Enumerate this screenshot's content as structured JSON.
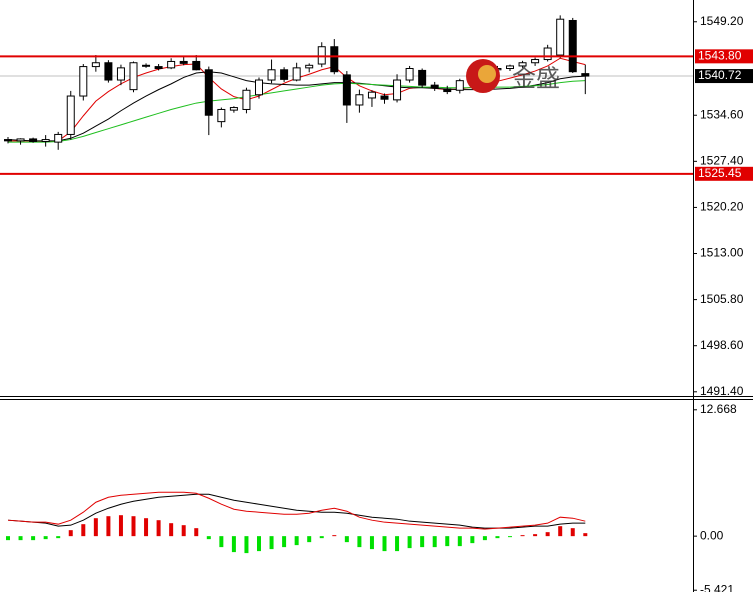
{
  "chart_data": [
    {
      "type": "candlestick",
      "ylim": [
        1490.9,
        1552.6
      ],
      "yticks": [
        {
          "value": 1549.2,
          "label": "1549.20"
        },
        {
          "value": 1534.6,
          "label": "1534.60"
        },
        {
          "value": 1527.4,
          "label": "1527.40"
        },
        {
          "value": 1520.2,
          "label": "1520.20"
        },
        {
          "value": 1513.0,
          "label": "1513.00"
        },
        {
          "value": 1505.8,
          "label": "1505.80"
        },
        {
          "value": 1498.6,
          "label": "1498.60"
        },
        {
          "value": 1491.4,
          "label": "1491.40"
        }
      ],
      "open": [
        1530.8,
        1530.6,
        1530.9,
        1530.5,
        1530.4,
        1531.6,
        1537.6,
        1542.2,
        1542.8,
        1540.1,
        1538.6,
        1542.3,
        1542.2,
        1542.0,
        1543.0,
        1543.0,
        1541.7,
        1533.6,
        1535.4,
        1535.5,
        1537.8,
        1540.1,
        1541.7,
        1540.1,
        1542.0,
        1542.6,
        1545.3,
        1540.9,
        1536.2,
        1537.3,
        1537.6,
        1537.0,
        1540.1,
        1541.6,
        1539.3,
        1538.7,
        1538.5,
        1540.1,
        1541.0,
        1541.7,
        1541.9,
        1542.3,
        1542.8,
        1543.3,
        1544.0,
        1549.4,
        1541.1
      ],
      "high": [
        1531.2,
        1531.0,
        1531.1,
        1531.5,
        1532.0,
        1538.4,
        1542.6,
        1544.0,
        1543.2,
        1542.5,
        1543.0,
        1542.7,
        1542.6,
        1543.5,
        1543.8,
        1544.0,
        1542.2,
        1535.8,
        1536.0,
        1538.9,
        1540.5,
        1543.3,
        1542.1,
        1542.8,
        1542.7,
        1546.0,
        1546.5,
        1541.5,
        1538.6,
        1538.5,
        1538.0,
        1541.0,
        1542.3,
        1541.9,
        1539.8,
        1539.2,
        1540.3,
        1541.3,
        1542.1,
        1542.3,
        1542.5,
        1543.1,
        1543.6,
        1545.6,
        1550.2,
        1549.8,
        1542.5
      ],
      "low": [
        1530.2,
        1530.0,
        1530.3,
        1529.7,
        1529.2,
        1530.8,
        1536.9,
        1541.4,
        1539.7,
        1539.3,
        1538.2,
        1542.0,
        1541.6,
        1541.8,
        1542.4,
        1541.6,
        1531.5,
        1532.7,
        1535.0,
        1534.9,
        1537.2,
        1539.6,
        1539.8,
        1539.9,
        1541.3,
        1542.1,
        1541.0,
        1533.4,
        1535.0,
        1535.9,
        1536.4,
        1536.6,
        1539.7,
        1538.9,
        1538.4,
        1537.9,
        1538.0,
        1539.7,
        1540.5,
        1541.3,
        1541.5,
        1542.0,
        1542.3,
        1543.0,
        1543.5,
        1541.2,
        1537.9
      ],
      "close": [
        1530.6,
        1530.9,
        1530.5,
        1530.8,
        1531.6,
        1537.6,
        1542.2,
        1542.8,
        1540.1,
        1542.0,
        1542.8,
        1542.4,
        1541.9,
        1543.0,
        1542.7,
        1541.7,
        1534.6,
        1535.5,
        1535.8,
        1538.5,
        1540.1,
        1541.7,
        1540.2,
        1542.0,
        1542.4,
        1545.3,
        1541.4,
        1536.2,
        1537.8,
        1538.2,
        1537.1,
        1540.1,
        1541.9,
        1539.3,
        1538.9,
        1538.3,
        1540.0,
        1541.0,
        1541.7,
        1541.9,
        1542.3,
        1542.8,
        1543.3,
        1545.1,
        1549.6,
        1541.4,
        1540.72
      ],
      "up_color": "#ffffff",
      "down_color": "#000000",
      "outline_color": "#000000",
      "moving_averages": [
        {
          "color": "#e00000",
          "values": [
            1530.6,
            1530.6,
            1530.6,
            1530.5,
            1530.6,
            1532.0,
            1534.5,
            1536.8,
            1538.3,
            1539.5,
            1540.5,
            1541.2,
            1541.8,
            1542.2,
            1542.5,
            1542.6,
            1540.5,
            1538.7,
            1537.5,
            1537.0,
            1537.6,
            1538.6,
            1539.6,
            1540.4,
            1541.0,
            1541.7,
            1542.2,
            1540.5,
            1539.2,
            1538.4,
            1537.8,
            1538.0,
            1538.8,
            1539.0,
            1538.8,
            1538.6,
            1538.7,
            1539.0,
            1539.4,
            1539.9,
            1540.4,
            1540.9,
            1541.5,
            1542.3,
            1543.5,
            1543.0,
            1542.5
          ]
        },
        {
          "color": "#000000",
          "values": [
            1530.8,
            1530.7,
            1530.6,
            1530.6,
            1530.6,
            1531.0,
            1531.8,
            1532.9,
            1534.0,
            1535.3,
            1536.5,
            1537.6,
            1538.6,
            1539.5,
            1540.5,
            1541.2,
            1541.4,
            1541.2,
            1540.6,
            1540.0,
            1539.7,
            1539.5,
            1539.4,
            1539.3,
            1539.3,
            1539.5,
            1539.7,
            1539.7,
            1539.6,
            1539.4,
            1539.2,
            1539.0,
            1538.9,
            1538.9,
            1538.8,
            1538.7,
            1538.6,
            1538.6,
            1538.6,
            1538.7,
            1538.8,
            1539.0,
            1539.3,
            1539.7,
            1540.3,
            1540.6,
            1540.7
          ]
        },
        {
          "color": "#1fbf1f",
          "values": [
            1530.4,
            1530.4,
            1530.4,
            1530.4,
            1530.5,
            1530.8,
            1531.3,
            1531.9,
            1532.5,
            1533.1,
            1533.7,
            1534.3,
            1534.9,
            1535.5,
            1536.0,
            1536.5,
            1536.8,
            1537.0,
            1537.2,
            1537.5,
            1537.8,
            1538.1,
            1538.4,
            1538.7,
            1539.0,
            1539.3,
            1539.5,
            1539.6,
            1539.5,
            1539.4,
            1539.3,
            1539.2,
            1539.1,
            1539.0,
            1539.0,
            1538.9,
            1538.9,
            1538.9,
            1538.9,
            1539.0,
            1539.0,
            1539.1,
            1539.2,
            1539.4,
            1539.7,
            1539.9,
            1540.0
          ]
        }
      ],
      "levels": [
        {
          "value": 1543.8,
          "label": "1543.80",
          "color": "#e00000"
        },
        {
          "value": 1525.45,
          "label": "1525.45",
          "color": "#e00000"
        }
      ],
      "current": {
        "value": 1540.72,
        "label": "1540.72",
        "color": "#000000",
        "line_color": "#c0c0c0"
      },
      "watermark": "金盛"
    },
    {
      "type": "macd",
      "ylim": [
        -5.6,
        13.65
      ],
      "yticks": [
        12.668,
        {
          "value": 0,
          "label": "0.00"
        },
        -5.421
      ],
      "histogram": {
        "positive_color": "#e00000",
        "negative_color": "#00e000",
        "values": [
          -0.4,
          -0.4,
          -0.4,
          -0.3,
          -0.2,
          0.6,
          1.2,
          1.8,
          2.0,
          2.1,
          2.0,
          1.8,
          1.6,
          1.3,
          1.1,
          0.8,
          -0.3,
          -1.1,
          -1.6,
          -1.7,
          -1.5,
          -1.3,
          -1.1,
          -0.9,
          -0.6,
          -0.2,
          0.1,
          -0.6,
          -1.1,
          -1.3,
          -1.5,
          -1.5,
          -1.2,
          -1.1,
          -1.1,
          -1.0,
          -1.0,
          -0.7,
          -0.4,
          -0.2,
          -0.1,
          0.1,
          0.2,
          0.4,
          1.0,
          0.8,
          0.3
        ]
      },
      "lines": [
        {
          "color": "#000000",
          "values": [
            1.6,
            1.5,
            1.4,
            1.3,
            1.0,
            1.1,
            1.6,
            2.3,
            2.8,
            3.2,
            3.5,
            3.7,
            3.9,
            4.0,
            4.1,
            4.2,
            4.2,
            3.9,
            3.6,
            3.4,
            3.2,
            3.0,
            2.8,
            2.6,
            2.5,
            2.4,
            2.4,
            2.3,
            2.1,
            1.9,
            1.8,
            1.7,
            1.5,
            1.4,
            1.3,
            1.2,
            1.1,
            0.9,
            0.8,
            0.8,
            0.8,
            0.9,
            1.0,
            1.0,
            1.2,
            1.3,
            1.3
          ]
        },
        {
          "color": "#e00000",
          "values": [
            1.6,
            1.5,
            1.4,
            1.4,
            1.2,
            1.6,
            2.4,
            3.4,
            3.9,
            4.1,
            4.2,
            4.3,
            4.4,
            4.4,
            4.4,
            4.3,
            3.8,
            3.2,
            2.7,
            2.5,
            2.4,
            2.3,
            2.2,
            2.2,
            2.3,
            2.6,
            2.8,
            2.5,
            1.9,
            1.6,
            1.4,
            1.3,
            1.2,
            1.1,
            1.0,
            0.9,
            0.8,
            0.8,
            0.7,
            0.8,
            0.9,
            1.0,
            1.1,
            1.3,
            1.9,
            1.8,
            1.5
          ]
        }
      ]
    }
  ]
}
